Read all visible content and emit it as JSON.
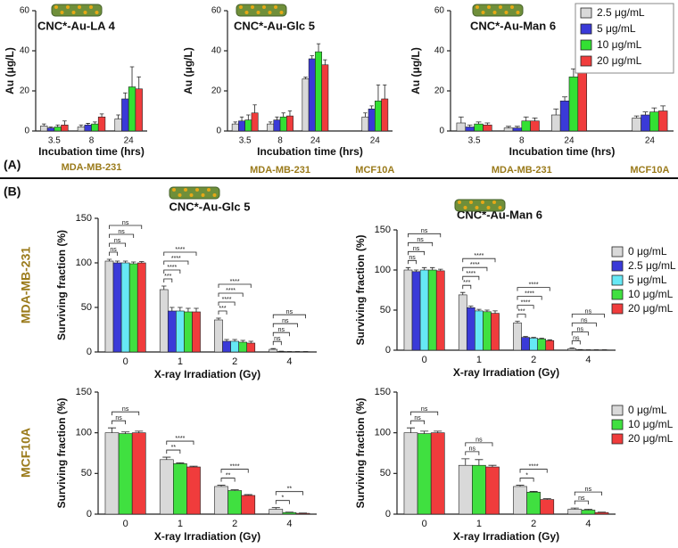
{
  "panels": [
    {
      "label": "(A)"
    },
    {
      "label": "(B)",
      "row_labels": [
        "MDA-MB-231",
        "MCF10A"
      ]
    }
  ],
  "chart_data": [
    {
      "type": "bar",
      "title": "CNC*-Au-LA 4",
      "xlabel": "Incubation time (hrs)",
      "ylabel": "Au (μg/L)",
      "groups": [
        {
          "label": "MDA-MB-231",
          "categories": [
            "3.5",
            "8",
            "24"
          ]
        }
      ],
      "series": [
        {
          "color": "#d9d9d9",
          "values": [
            2.5,
            2,
            6
          ],
          "errors": [
            1,
            1,
            2
          ]
        },
        {
          "color": "#3a3ad8",
          "values": [
            1.5,
            3,
            16
          ],
          "errors": [
            0.5,
            0.8,
            3
          ]
        },
        {
          "color": "#33e033",
          "values": [
            2,
            3.5,
            22
          ],
          "errors": [
            1,
            1,
            10
          ]
        },
        {
          "color": "#f03c3c",
          "values": [
            3,
            7,
            21
          ],
          "errors": [
            2,
            1.5,
            6
          ]
        }
      ],
      "ylim": [
        0,
        60
      ],
      "yticks": [
        0,
        20,
        40,
        60
      ]
    },
    {
      "type": "bar",
      "title": "CNC*-Au-Glc 5",
      "xlabel": "Incubation time (hrs)",
      "ylabel": "Au (μg/L)",
      "groups": [
        {
          "label": "MDA-MB-231",
          "categories": [
            "3.5",
            "8",
            "24"
          ]
        },
        {
          "label": "MCF10A",
          "categories": [
            "24"
          ]
        }
      ],
      "series": [
        {
          "color": "#d9d9d9",
          "values": [
            3.5,
            3.5,
            26,
            7
          ],
          "errors": [
            1,
            1,
            0.8,
            2
          ]
        },
        {
          "color": "#3a3ad8",
          "values": [
            5,
            5.5,
            36,
            11
          ],
          "errors": [
            2,
            1.5,
            1.5,
            1.5
          ]
        },
        {
          "color": "#33e033",
          "values": [
            5.5,
            7,
            39.5,
            15
          ],
          "errors": [
            2.5,
            2,
            4,
            8
          ]
        },
        {
          "color": "#f03c3c",
          "values": [
            9,
            7.5,
            33,
            16
          ],
          "errors": [
            4,
            2.5,
            2.5,
            7
          ]
        }
      ],
      "ylim": [
        0,
        60
      ],
      "yticks": [
        0,
        20,
        40,
        60
      ]
    },
    {
      "type": "bar",
      "title": "CNC*-Au-Man 6",
      "xlabel": "Incubation time (hrs)",
      "ylabel": "Au (μg/L)",
      "groups": [
        {
          "label": "MDA-MB-231",
          "categories": [
            "3.5",
            "8",
            "24"
          ]
        },
        {
          "label": "MCF10A",
          "categories": [
            "24"
          ]
        }
      ],
      "series": [
        {
          "name": "2.5 μg/mL",
          "color": "#d9d9d9",
          "values": [
            4,
            1.5,
            8,
            6.5
          ],
          "errors": [
            3,
            0.8,
            3,
            1
          ]
        },
        {
          "name": "5 μg/mL",
          "color": "#3a3ad8",
          "values": [
            2,
            1.5,
            15,
            8
          ],
          "errors": [
            1,
            0.8,
            2,
            1.5
          ]
        },
        {
          "name": "10 μg/mL",
          "color": "#33e033",
          "values": [
            3.5,
            5,
            27,
            9.5
          ],
          "errors": [
            1,
            2,
            4,
            2
          ]
        },
        {
          "name": "20 μg/mL",
          "color": "#f03c3c",
          "values": [
            3,
            5,
            32,
            10
          ],
          "errors": [
            1,
            1.5,
            3,
            2.5
          ]
        }
      ],
      "ylim": [
        0,
        60
      ],
      "yticks": [
        0,
        20,
        40,
        60
      ],
      "legend": "upper right"
    },
    {
      "type": "bar",
      "title": "CNC*-Au-Glc 5",
      "xlabel": "X-ray Irradiation (Gy)",
      "ylabel": "Surviving fraction (%)",
      "categories": [
        "0",
        "1",
        "2",
        "4"
      ],
      "series": [
        {
          "color": "#d9d9d9",
          "values": [
            102,
            70,
            36,
            3
          ],
          "errors": [
            2,
            4,
            2,
            0.8
          ]
        },
        {
          "color": "#3a3ad8",
          "values": [
            100,
            46,
            12,
            0.5
          ],
          "errors": [
            2,
            4,
            2,
            0.3
          ]
        },
        {
          "color": "#66e8f5",
          "values": [
            100,
            46,
            12,
            0.3
          ],
          "errors": [
            2,
            4,
            2,
            0.2
          ]
        },
        {
          "color": "#40e040",
          "values": [
            99,
            45,
            11,
            0.3
          ],
          "errors": [
            2,
            4,
            2,
            0.2
          ]
        },
        {
          "color": "#f03c3c",
          "values": [
            100,
            45,
            10,
            0.3
          ],
          "errors": [
            1.5,
            4,
            2,
            0.2
          ]
        }
      ],
      "ylim": [
        0,
        150
      ],
      "yticks": [
        0,
        50,
        100,
        150
      ],
      "brackets": [
        {
          "category": 0,
          "from": 0,
          "to": 1,
          "label": "ns"
        },
        {
          "category": 0,
          "from": 0,
          "to": 2,
          "label": "ns"
        },
        {
          "category": 0,
          "from": 0,
          "to": 3,
          "label": "ns"
        },
        {
          "category": 0,
          "from": 0,
          "to": 4,
          "label": "ns"
        },
        {
          "category": 1,
          "from": 0,
          "to": 1,
          "label": "***"
        },
        {
          "category": 1,
          "from": 0,
          "to": 2,
          "label": "****"
        },
        {
          "category": 1,
          "from": 0,
          "to": 3,
          "label": "****"
        },
        {
          "category": 1,
          "from": 0,
          "to": 4,
          "label": "****"
        },
        {
          "category": 2,
          "from": 0,
          "to": 1,
          "label": "***"
        },
        {
          "category": 2,
          "from": 0,
          "to": 2,
          "label": "****"
        },
        {
          "category": 2,
          "from": 0,
          "to": 3,
          "label": "****"
        },
        {
          "category": 2,
          "from": 0,
          "to": 4,
          "label": "****"
        },
        {
          "category": 3,
          "from": 0,
          "to": 1,
          "label": "ns"
        },
        {
          "category": 3,
          "from": 0,
          "to": 2,
          "label": "ns"
        },
        {
          "category": 3,
          "from": 0,
          "to": 3,
          "label": "ns"
        },
        {
          "category": 3,
          "from": 0,
          "to": 4,
          "label": "ns"
        }
      ]
    },
    {
      "type": "bar",
      "title": "CNC*-Au-Man 6",
      "xlabel": "X-ray Irradiation (Gy)",
      "ylabel": "Surviving fraction (%)",
      "categories": [
        "0",
        "1",
        "2",
        "4"
      ],
      "series": [
        {
          "name": "0 μg/mL",
          "color": "#d9d9d9",
          "values": [
            100,
            69,
            34,
            2
          ],
          "errors": [
            3,
            3,
            2,
            0.8
          ]
        },
        {
          "name": "2.5 μg/mL",
          "color": "#3a3ad8",
          "values": [
            98,
            53,
            16,
            0.5
          ],
          "errors": [
            2,
            2,
            1,
            0.3
          ]
        },
        {
          "name": "5 μg/mL",
          "color": "#66e8f5",
          "values": [
            100,
            49,
            15,
            0.3
          ],
          "errors": [
            3,
            2,
            1,
            0.2
          ]
        },
        {
          "name": "10 μg/mL",
          "color": "#40e040",
          "values": [
            100,
            48,
            14,
            0.3
          ],
          "errors": [
            3,
            2,
            1,
            0.2
          ]
        },
        {
          "name": "20 μg/mL",
          "color": "#f03c3c",
          "values": [
            99,
            46,
            12,
            0.3
          ],
          "errors": [
            2,
            3,
            1,
            0.2
          ]
        }
      ],
      "ylim": [
        0,
        150
      ],
      "yticks": [
        0,
        50,
        100,
        150
      ],
      "legend": "upper right",
      "brackets": [
        {
          "category": 0,
          "from": 0,
          "to": 1,
          "label": "ns"
        },
        {
          "category": 0,
          "from": 0,
          "to": 2,
          "label": "ns"
        },
        {
          "category": 0,
          "from": 0,
          "to": 3,
          "label": "ns"
        },
        {
          "category": 0,
          "from": 0,
          "to": 4,
          "label": "ns"
        },
        {
          "category": 1,
          "from": 0,
          "to": 1,
          "label": "***"
        },
        {
          "category": 1,
          "from": 0,
          "to": 2,
          "label": "****"
        },
        {
          "category": 1,
          "from": 0,
          "to": 3,
          "label": "****"
        },
        {
          "category": 1,
          "from": 0,
          "to": 4,
          "label": "****"
        },
        {
          "category": 2,
          "from": 0,
          "to": 1,
          "label": "***"
        },
        {
          "category": 2,
          "from": 0,
          "to": 2,
          "label": "****"
        },
        {
          "category": 2,
          "from": 0,
          "to": 3,
          "label": "****"
        },
        {
          "category": 2,
          "from": 0,
          "to": 4,
          "label": "****"
        },
        {
          "category": 3,
          "from": 0,
          "to": 1,
          "label": "ns"
        },
        {
          "category": 3,
          "from": 0,
          "to": 2,
          "label": "ns"
        },
        {
          "category": 3,
          "from": 0,
          "to": 3,
          "label": "ns"
        },
        {
          "category": 3,
          "from": 0,
          "to": 4,
          "label": "ns"
        }
      ]
    },
    {
      "type": "bar",
      "xlabel": "X-ray Irradiation (Gy)",
      "ylabel": "Surviving fraction (%)",
      "categories": [
        "0",
        "1",
        "2",
        "4"
      ],
      "series": [
        {
          "color": "#d9d9d9",
          "values": [
            100,
            67,
            34,
            6
          ],
          "errors": [
            6,
            3,
            1.5,
            2
          ]
        },
        {
          "color": "#40e040",
          "values": [
            99,
            62,
            29,
            2
          ],
          "errors": [
            2,
            1,
            1,
            0.5
          ]
        },
        {
          "color": "#f03c3c",
          "values": [
            100,
            58,
            23,
            1
          ],
          "errors": [
            2,
            1,
            1,
            0.3
          ]
        }
      ],
      "ylim": [
        0,
        150
      ],
      "yticks": [
        0,
        50,
        100,
        150
      ],
      "brackets": [
        {
          "category": 0,
          "from": 0,
          "to": 1,
          "label": "ns"
        },
        {
          "category": 0,
          "from": 0,
          "to": 2,
          "label": "ns"
        },
        {
          "category": 1,
          "from": 0,
          "to": 1,
          "label": "**"
        },
        {
          "category": 1,
          "from": 0,
          "to": 2,
          "label": "****"
        },
        {
          "category": 2,
          "from": 0,
          "to": 1,
          "label": "**"
        },
        {
          "category": 2,
          "from": 0,
          "to": 2,
          "label": "****"
        },
        {
          "category": 3,
          "from": 0,
          "to": 1,
          "label": "*"
        },
        {
          "category": 3,
          "from": 0,
          "to": 2,
          "label": "**"
        }
      ]
    },
    {
      "type": "bar",
      "xlabel": "X-ray Irradiation (Gy)",
      "ylabel": "Surviving fraction (%)",
      "categories": [
        "0",
        "1",
        "2",
        "4"
      ],
      "series": [
        {
          "name": "0 μg/mL",
          "color": "#d9d9d9",
          "values": [
            100,
            60,
            34,
            6
          ],
          "errors": [
            6,
            8,
            1.5,
            1.5
          ]
        },
        {
          "name": "10 μg/mL",
          "color": "#40e040",
          "values": [
            99,
            60,
            27,
            5
          ],
          "errors": [
            3,
            7,
            1,
            1
          ]
        },
        {
          "name": "20 μg/mL",
          "color": "#f03c3c",
          "values": [
            100,
            58,
            18,
            2
          ],
          "errors": [
            2,
            2,
            1,
            0.5
          ]
        }
      ],
      "ylim": [
        0,
        150
      ],
      "yticks": [
        0,
        50,
        100,
        150
      ],
      "legend": "upper right",
      "brackets": [
        {
          "category": 0,
          "from": 0,
          "to": 1,
          "label": "ns"
        },
        {
          "category": 0,
          "from": 0,
          "to": 2,
          "label": "ns"
        },
        {
          "category": 1,
          "from": 0,
          "to": 1,
          "label": "ns"
        },
        {
          "category": 1,
          "from": 0,
          "to": 2,
          "label": "ns"
        },
        {
          "category": 2,
          "from": 0,
          "to": 1,
          "label": "*"
        },
        {
          "category": 2,
          "from": 0,
          "to": 2,
          "label": "****"
        },
        {
          "category": 3,
          "from": 0,
          "to": 1,
          "label": "ns"
        },
        {
          "category": 3,
          "from": 0,
          "to": 2,
          "label": "ns"
        }
      ]
    }
  ]
}
